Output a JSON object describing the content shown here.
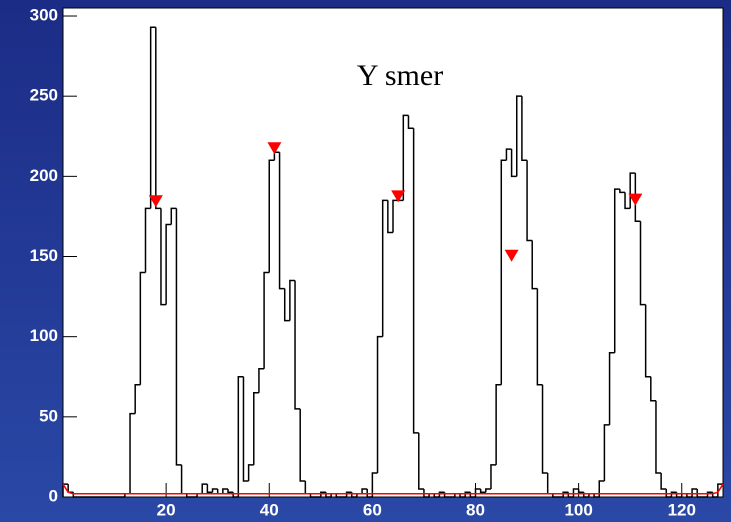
{
  "chart_data": {
    "type": "histogram",
    "annotation": "Y smer",
    "color": "#000000",
    "bins": [
      0,
      1,
      2,
      3,
      4,
      5,
      6,
      7,
      8,
      9,
      10,
      11,
      12,
      13,
      14,
      15,
      16,
      17,
      18,
      19,
      20,
      21,
      22,
      23,
      24,
      25,
      26,
      27,
      28,
      29,
      30,
      31,
      32,
      33,
      34,
      35,
      36,
      37,
      38,
      39,
      40,
      41,
      42,
      43,
      44,
      45,
      46,
      47,
      48,
      49,
      50,
      51,
      52,
      53,
      54,
      55,
      56,
      57,
      58,
      59,
      60,
      61,
      62,
      63,
      64,
      65,
      66,
      67,
      68,
      69,
      70,
      71,
      72,
      73,
      74,
      75,
      76,
      77,
      78,
      79,
      80,
      81,
      82,
      83,
      84,
      85,
      86,
      87,
      88,
      89,
      90,
      91,
      92,
      93,
      94,
      95,
      96,
      97,
      98,
      99,
      100,
      101,
      102,
      103,
      104,
      105,
      106,
      107,
      108,
      109,
      110,
      111,
      112,
      113,
      114,
      115,
      116,
      117,
      118,
      119,
      120,
      121,
      122,
      123,
      124,
      125,
      126,
      127,
      128
    ],
    "values": [
      8,
      3,
      0,
      0,
      0,
      0,
      0,
      0,
      0,
      0,
      0,
      0,
      2,
      52,
      70,
      140,
      180,
      293,
      180,
      120,
      170,
      180,
      20,
      2,
      0,
      0,
      2,
      8,
      3,
      5,
      2,
      5,
      3,
      0,
      75,
      10,
      20,
      65,
      80,
      140,
      210,
      215,
      130,
      110,
      135,
      55,
      10,
      2,
      0,
      0,
      3,
      0,
      2,
      0,
      0,
      3,
      0,
      2,
      5,
      0,
      15,
      100,
      185,
      165,
      185,
      185,
      238,
      230,
      40,
      5,
      0,
      2,
      0,
      3,
      0,
      0,
      2,
      0,
      3,
      0,
      5,
      3,
      5,
      20,
      70,
      210,
      217,
      200,
      250,
      210,
      160,
      130,
      70,
      15,
      2,
      0,
      0,
      3,
      0,
      5,
      3,
      0,
      2,
      0,
      10,
      45,
      90,
      192,
      190,
      180,
      202,
      172,
      120,
      75,
      60,
      15,
      5,
      0,
      3,
      0,
      2,
      0,
      5,
      0,
      0,
      3,
      0,
      8
    ],
    "baseline": {
      "color": "#ff0000",
      "x": [
        0,
        1,
        2,
        126,
        127,
        128
      ],
      "values": [
        8,
        3,
        2,
        2,
        3,
        8
      ]
    },
    "markers": {
      "color": "#ff0000",
      "x": [
        18,
        41,
        65,
        87,
        111
      ],
      "values": [
        182,
        215,
        185,
        148,
        183
      ]
    },
    "xlim": [
      0,
      128
    ],
    "ylim": [
      0,
      305
    ],
    "xticks": [
      20,
      40,
      60,
      80,
      100,
      120
    ],
    "yticks": [
      0,
      50,
      100,
      150,
      200,
      250,
      300
    ]
  }
}
